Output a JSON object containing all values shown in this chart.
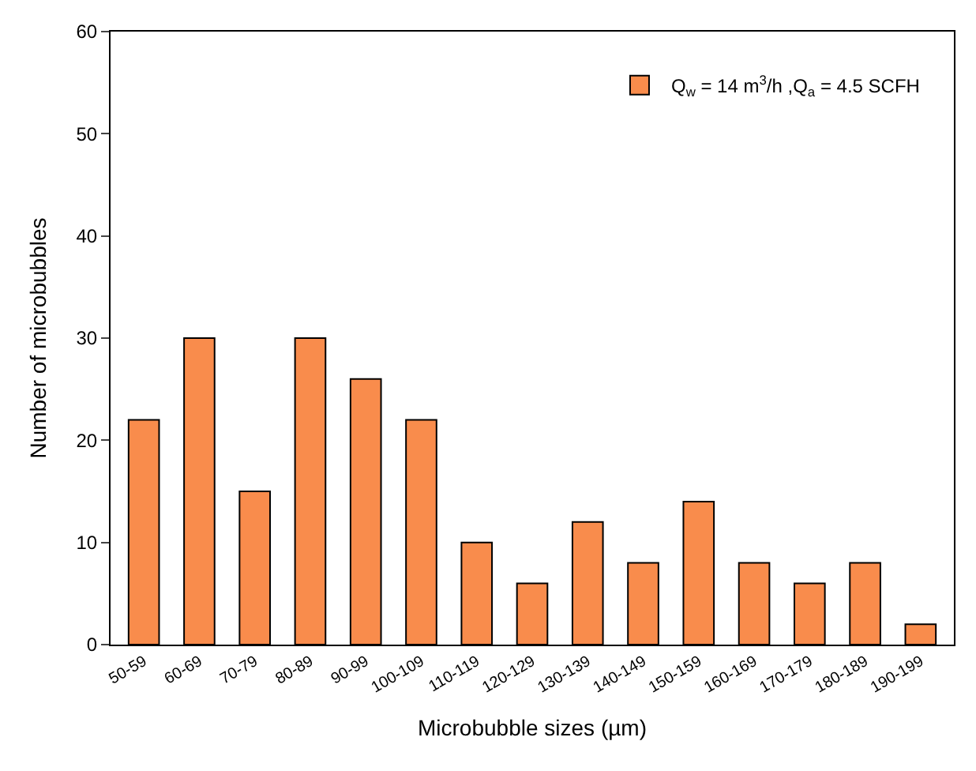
{
  "chart_data": {
    "type": "bar",
    "xlabel": "Microbubble sizes (µm)",
    "ylabel": "Number of microbubbles",
    "categories": [
      "50-59",
      "60-69",
      "70-79",
      "80-89",
      "90-99",
      "100-109",
      "110-119",
      "120-129",
      "130-139",
      "140-149",
      "150-159",
      "160-169",
      "170-179",
      "180-189",
      "190-199"
    ],
    "series": [
      {
        "name": "Q$_{w}$ = 14 m$^{3}$/h ,Q$_{a}$ = 4.5 SCFH",
        "color": "#f98c4c",
        "values": [
          22,
          30,
          15,
          30,
          26,
          22,
          10,
          6,
          12,
          8,
          14,
          8,
          6,
          8,
          2
        ]
      }
    ],
    "ylim": [
      0,
      60
    ],
    "yticks": [
      0,
      10,
      20,
      30,
      40,
      50,
      60
    ],
    "legend": "top right"
  }
}
